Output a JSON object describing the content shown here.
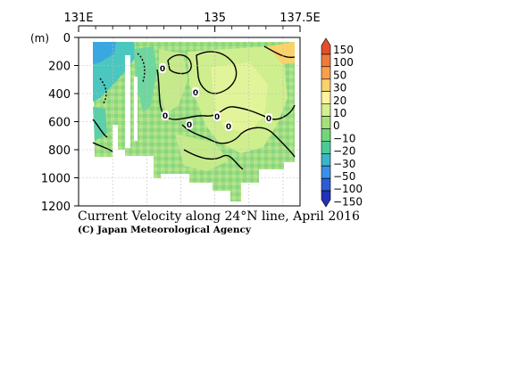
{
  "chart_data": {
    "type": "heatmap",
    "title": "Current Velocity along 24°N line, April 2016",
    "credit": "(C) Japan Meteorological Agency",
    "y_unit": "(m)",
    "x_ticks": [
      {
        "value": 131,
        "label": "131E"
      },
      {
        "value": 135,
        "label": "135"
      },
      {
        "value": 137.5,
        "label": "137.5E"
      }
    ],
    "xlim": [
      131,
      137.5
    ],
    "y_ticks": [
      0,
      200,
      400,
      600,
      800,
      1000,
      1200
    ],
    "ylim": [
      0,
      1200
    ],
    "y_reversed": true,
    "grid": true,
    "colorbar": {
      "levels": [
        "150",
        "100",
        "50",
        "30",
        "20",
        "10",
        "0",
        "−10",
        "−20",
        "−30",
        "−50",
        "−100",
        "−150"
      ],
      "colors": [
        "#e0502a",
        "#f07a3a",
        "#f8a050",
        "#fbd26a",
        "#fff3a0",
        "#d4ef8c",
        "#a6e07a",
        "#72d67c",
        "#4ccb98",
        "#3ab6c8",
        "#3a90e6",
        "#2e5bd8",
        "#2232b8"
      ]
    },
    "contour_labels": [
      "0",
      "0",
      "0",
      "0",
      "0",
      "0",
      "0",
      "0"
    ]
  }
}
